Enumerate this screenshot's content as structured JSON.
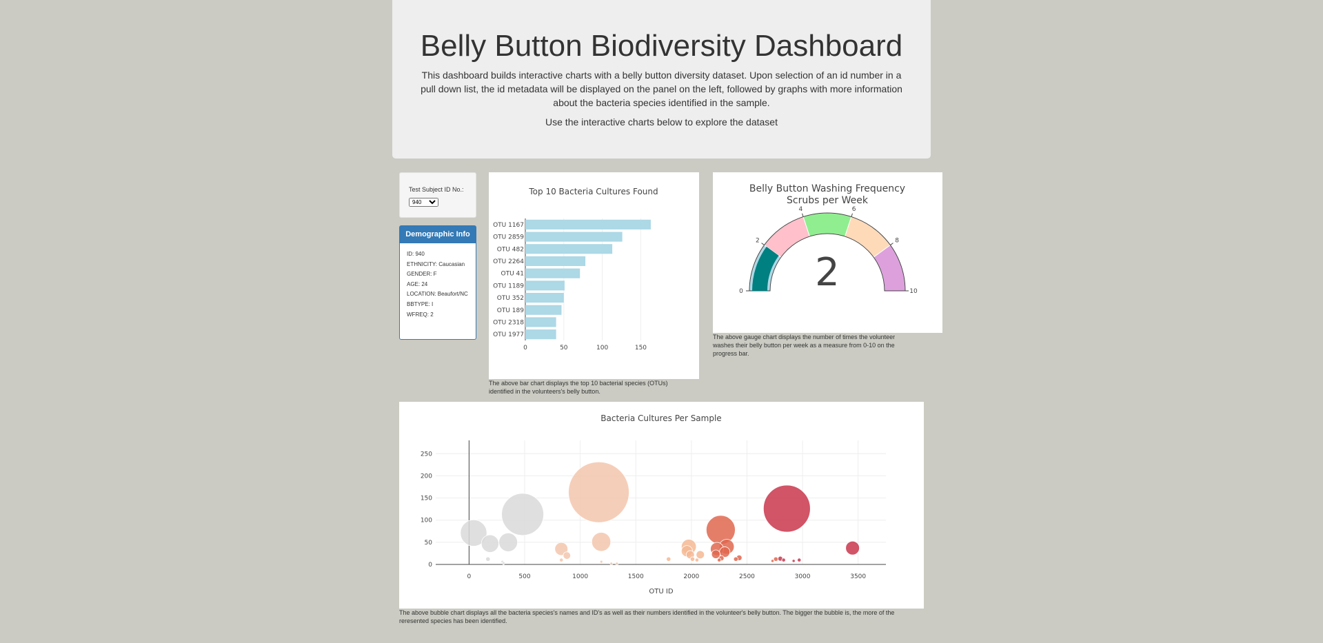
{
  "header": {
    "title": "Belly Button Biodiversity Dashboard",
    "description": "This dashboard builds interactive charts with a belly button diversity dataset. Upon selection of an id number in a pull down list, the id metadata will be displayed on the panel on the left, followed by graphs with more information about the bacteria species identified in the sample.",
    "subtitle": "Use the interactive charts below to explore the dataset"
  },
  "selector": {
    "label": "Test Subject ID No.:",
    "selected": "940"
  },
  "demographics": {
    "title": "Demographic Info",
    "rows": [
      "ID: 940",
      "ETHNICITY: Caucasian",
      "GENDER: F",
      "AGE: 24",
      "LOCATION: Beaufort/NC",
      "BBTYPE: I",
      "WFREQ: 2"
    ]
  },
  "captions": {
    "bar": "The above bar chart displays the top 10 bacterial species (OTUs) identified in the volunteers's belly button.",
    "gauge": "The above gauge chart displays the number of times the volunteer washes their belly button per week as a measure from 0-10 on the progress bar.",
    "bubble": "The above bubble chart displays all the bacteria species's names and ID's as well as their numbers identified in the volunteer's belly button. The bigger the bubble is, the more of the reresented species has been identified."
  },
  "chart_data": [
    {
      "type": "bar",
      "title": "Top 10 Bacteria Cultures Found",
      "orientation": "horizontal",
      "categories": [
        "OTU 1167",
        "OTU 2859",
        "OTU 482",
        "OTU 2264",
        "OTU 41",
        "OTU 1189",
        "OTU 352",
        "OTU 189",
        "OTU 2318",
        "OTU 1977"
      ],
      "values": [
        163,
        126,
        113,
        78,
        71,
        51,
        50,
        47,
        40,
        40
      ],
      "xticks": [
        0,
        50,
        100,
        150
      ],
      "xlim": [
        0,
        172
      ],
      "color": "#add8e6"
    },
    {
      "type": "gauge",
      "title": "Belly Button Washing Frequency",
      "subtitle": "Scrubs per Week",
      "value": 2,
      "range": [
        0,
        10
      ],
      "ticks": [
        0,
        2,
        4,
        6,
        8,
        10
      ],
      "steps": [
        {
          "range": [
            0,
            2
          ],
          "color": "#add8e6"
        },
        {
          "range": [
            2,
            4
          ],
          "color": "#ffc0cb"
        },
        {
          "range": [
            4,
            6
          ],
          "color": "#90ee90"
        },
        {
          "range": [
            6,
            8
          ],
          "color": "#ffdab9"
        },
        {
          "range": [
            8,
            10
          ],
          "color": "#dda0dd"
        }
      ],
      "bar_color": "#008080"
    },
    {
      "type": "scatter",
      "title": "Bacteria Cultures Per Sample",
      "xlabel": "OTU ID",
      "xlim": [
        -300,
        3750
      ],
      "ylim": [
        0,
        280
      ],
      "xticks": [
        0,
        500,
        1000,
        1500,
        2000,
        2500,
        3000,
        3500
      ],
      "yticks": [
        0,
        50,
        100,
        150,
        200,
        250
      ],
      "points": [
        {
          "x": 41,
          "y": 71
        },
        {
          "x": 189,
          "y": 47
        },
        {
          "x": 352,
          "y": 50
        },
        {
          "x": 482,
          "y": 113
        },
        {
          "x": 170,
          "y": 12
        },
        {
          "x": 300,
          "y": 6
        },
        {
          "x": 310,
          "y": 3
        },
        {
          "x": 830,
          "y": 35
        },
        {
          "x": 880,
          "y": 20
        },
        {
          "x": 830,
          "y": 10
        },
        {
          "x": 1167,
          "y": 163
        },
        {
          "x": 1189,
          "y": 51
        },
        {
          "x": 1190,
          "y": 6
        },
        {
          "x": 1280,
          "y": 2
        },
        {
          "x": 1330,
          "y": 2
        },
        {
          "x": 1795,
          "y": 12
        },
        {
          "x": 1977,
          "y": 40
        },
        {
          "x": 1960,
          "y": 30
        },
        {
          "x": 1990,
          "y": 22
        },
        {
          "x": 2010,
          "y": 12
        },
        {
          "x": 2050,
          "y": 10
        },
        {
          "x": 2080,
          "y": 22
        },
        {
          "x": 2230,
          "y": 35
        },
        {
          "x": 2220,
          "y": 23
        },
        {
          "x": 2264,
          "y": 78
        },
        {
          "x": 2270,
          "y": 14
        },
        {
          "x": 2300,
          "y": 28
        },
        {
          "x": 2318,
          "y": 40
        },
        {
          "x": 2250,
          "y": 10
        },
        {
          "x": 2400,
          "y": 12
        },
        {
          "x": 2430,
          "y": 15
        },
        {
          "x": 2730,
          "y": 8
        },
        {
          "x": 2760,
          "y": 12
        },
        {
          "x": 2800,
          "y": 13
        },
        {
          "x": 2830,
          "y": 10
        },
        {
          "x": 2859,
          "y": 126
        },
        {
          "x": 2920,
          "y": 8
        },
        {
          "x": 2970,
          "y": 10
        },
        {
          "x": 3450,
          "y": 37
        }
      ],
      "colorscale": [
        "#d9d9d9",
        "#f3c6ad",
        "#f5b994",
        "#e0674f",
        "#c9364c"
      ]
    }
  ]
}
